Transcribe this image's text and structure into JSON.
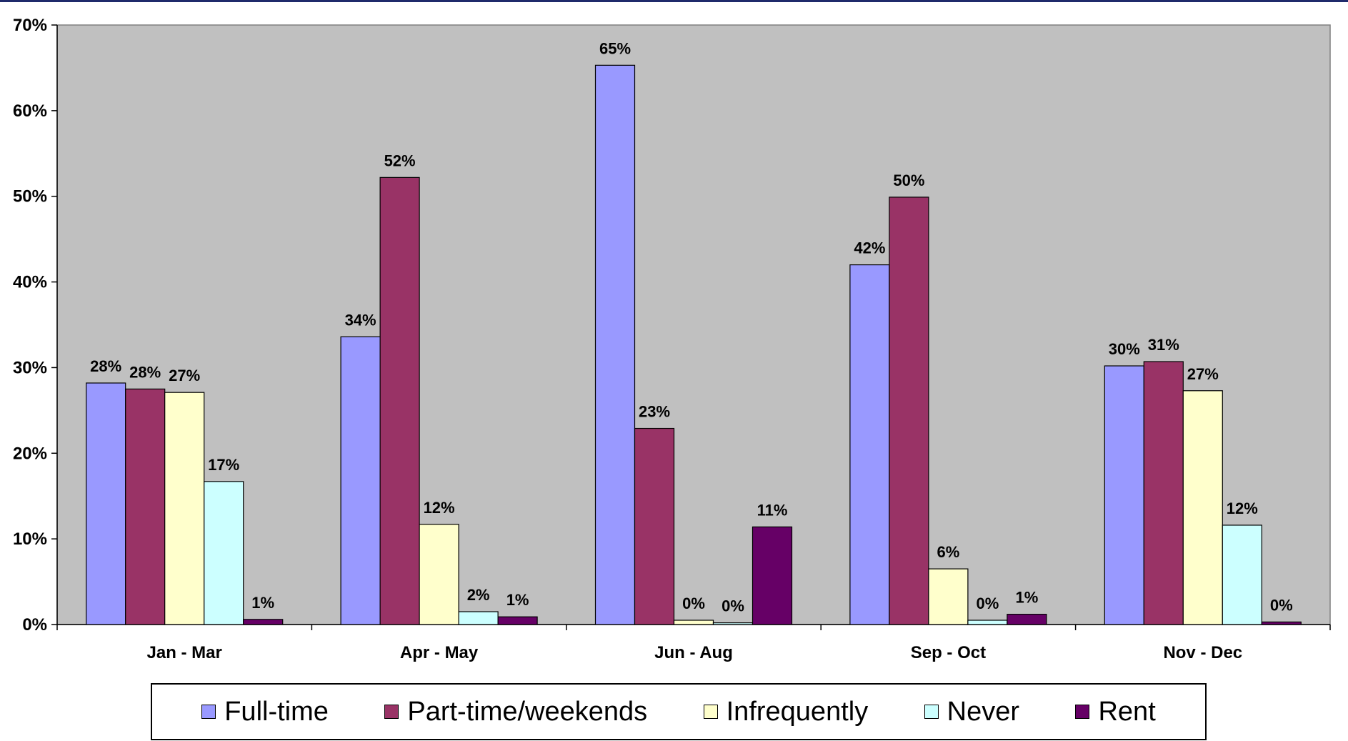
{
  "chart_data": {
    "type": "bar",
    "categories": [
      "Jan - Mar",
      "Apr - May",
      "Jun - Aug",
      "Sep - Oct",
      "Nov - Dec"
    ],
    "series": [
      {
        "name": "Full-time",
        "color": "#9999ff",
        "values": [
          28.2,
          33.6,
          65.3,
          42.0,
          30.2
        ],
        "labels": [
          "28%",
          "34%",
          "65%",
          "42%",
          "30%"
        ]
      },
      {
        "name": "Part-time/weekends",
        "color": "#993366",
        "values": [
          27.5,
          52.2,
          22.9,
          49.9,
          30.7
        ],
        "labels": [
          "28%",
          "52%",
          "23%",
          "50%",
          "31%"
        ]
      },
      {
        "name": "Infrequently",
        "color": "#ffffcc",
        "values": [
          27.1,
          11.7,
          0.5,
          6.5,
          27.3
        ],
        "labels": [
          "27%",
          "12%",
          "0%",
          "6%",
          "27%"
        ]
      },
      {
        "name": "Never",
        "color": "#ccffff",
        "values": [
          16.7,
          1.5,
          0.2,
          0.5,
          11.6
        ],
        "labels": [
          "17%",
          "2%",
          "0%",
          "0%",
          "12%"
        ]
      },
      {
        "name": "Rent",
        "color": "#660066",
        "values": [
          0.6,
          0.9,
          11.4,
          1.2,
          0.3
        ],
        "labels": [
          "1%",
          "1%",
          "11%",
          "1%",
          "0%"
        ]
      }
    ],
    "y_ticks": [
      "0%",
      "10%",
      "20%",
      "30%",
      "40%",
      "50%",
      "60%",
      "70%"
    ],
    "ylim": [
      0,
      70
    ],
    "title": "",
    "xlabel": "",
    "ylabel": "",
    "grid": false,
    "legend_position": "bottom",
    "plot_background": "#c0c0c0"
  }
}
